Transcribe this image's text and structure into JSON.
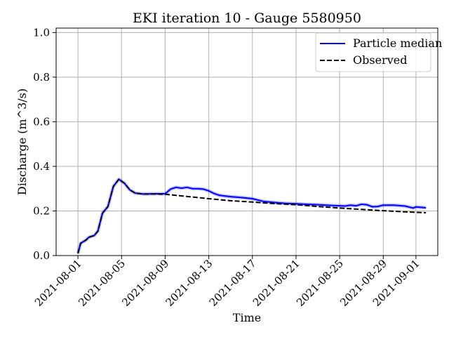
{
  "chart_data": {
    "type": "line",
    "title": "EKI iteration 10 - Gauge 5580950",
    "xlabel": "Time",
    "ylabel": "Discharge (m^3/s)",
    "xlim": [
      "2021-07-30",
      "2021-09-03"
    ],
    "ylim": [
      0,
      1.02
    ],
    "yticks": [
      0.0,
      0.2,
      0.4,
      0.6,
      0.8,
      1.0
    ],
    "yticklabels": [
      "0.0",
      "0.2",
      "0.4",
      "0.6",
      "0.8",
      "1.0"
    ],
    "xticks": [
      "2021-08-01",
      "2021-08-05",
      "2021-08-09",
      "2021-08-13",
      "2021-08-17",
      "2021-08-21",
      "2021-08-25",
      "2021-08-29",
      "2021-09-01"
    ],
    "grid": true,
    "legend_position": "top-right",
    "series": [
      {
        "name": "Particle median",
        "color": "#0000ff",
        "style": "solid",
        "points": [
          [
            "2021-08-01T00:00",
            0.01
          ],
          [
            "2021-08-01T06:00",
            0.055
          ],
          [
            "2021-08-01T18:00",
            0.07
          ],
          [
            "2021-08-02T00:00",
            0.082
          ],
          [
            "2021-08-02T12:00",
            0.09
          ],
          [
            "2021-08-02T20:00",
            0.11
          ],
          [
            "2021-08-03T06:00",
            0.19
          ],
          [
            "2021-08-03T18:00",
            0.22
          ],
          [
            "2021-08-04T06:00",
            0.31
          ],
          [
            "2021-08-04T18:00",
            0.342
          ],
          [
            "2021-08-05T06:00",
            0.325
          ],
          [
            "2021-08-05T18:00",
            0.295
          ],
          [
            "2021-08-06T06:00",
            0.28
          ],
          [
            "2021-08-07T00:00",
            0.276
          ],
          [
            "2021-08-08T00:00",
            0.277
          ],
          [
            "2021-08-09T00:00",
            0.277
          ],
          [
            "2021-08-09T12:00",
            0.298
          ],
          [
            "2021-08-10T00:00",
            0.306
          ],
          [
            "2021-08-10T12:00",
            0.302
          ],
          [
            "2021-08-11T00:00",
            0.306
          ],
          [
            "2021-08-11T12:00",
            0.3
          ],
          [
            "2021-08-12T00:00",
            0.3
          ],
          [
            "2021-08-12T12:00",
            0.298
          ],
          [
            "2021-08-13T00:00",
            0.29
          ],
          [
            "2021-08-13T12:00",
            0.278
          ],
          [
            "2021-08-14T00:00",
            0.27
          ],
          [
            "2021-08-15T00:00",
            0.264
          ],
          [
            "2021-08-16T00:00",
            0.26
          ],
          [
            "2021-08-17T00:00",
            0.255
          ],
          [
            "2021-08-18T00:00",
            0.243
          ],
          [
            "2021-08-19T00:00",
            0.238
          ],
          [
            "2021-08-20T00:00",
            0.234
          ],
          [
            "2021-08-21T00:00",
            0.232
          ],
          [
            "2021-08-22T00:00",
            0.23
          ],
          [
            "2021-08-23T00:00",
            0.228
          ],
          [
            "2021-08-24T00:00",
            0.225
          ],
          [
            "2021-08-25T00:00",
            0.223
          ],
          [
            "2021-08-25T12:00",
            0.222
          ],
          [
            "2021-08-26T00:00",
            0.226
          ],
          [
            "2021-08-26T12:00",
            0.223
          ],
          [
            "2021-08-27T00:00",
            0.23
          ],
          [
            "2021-08-27T12:00",
            0.228
          ],
          [
            "2021-08-28T00:00",
            0.219
          ],
          [
            "2021-08-28T12:00",
            0.22
          ],
          [
            "2021-08-29T00:00",
            0.226
          ],
          [
            "2021-08-30T00:00",
            0.226
          ],
          [
            "2021-08-31T00:00",
            0.222
          ],
          [
            "2021-08-31T18:00",
            0.213
          ],
          [
            "2021-09-01T00:00",
            0.218
          ],
          [
            "2021-09-01T12:00",
            0.216
          ],
          [
            "2021-09-01T22:00",
            0.214
          ]
        ]
      },
      {
        "name": "Observed",
        "color": "#000000",
        "style": "dashed",
        "points": [
          [
            "2021-08-01T00:00",
            0.01
          ],
          [
            "2021-08-01T06:00",
            0.055
          ],
          [
            "2021-08-01T18:00",
            0.07
          ],
          [
            "2021-08-02T00:00",
            0.082
          ],
          [
            "2021-08-02T12:00",
            0.09
          ],
          [
            "2021-08-02T20:00",
            0.11
          ],
          [
            "2021-08-03T06:00",
            0.19
          ],
          [
            "2021-08-03T18:00",
            0.22
          ],
          [
            "2021-08-04T06:00",
            0.31
          ],
          [
            "2021-08-04T18:00",
            0.342
          ],
          [
            "2021-08-05T06:00",
            0.325
          ],
          [
            "2021-08-05T18:00",
            0.295
          ],
          [
            "2021-08-06T06:00",
            0.28
          ],
          [
            "2021-08-07T00:00",
            0.276
          ],
          [
            "2021-08-08T00:00",
            0.276
          ],
          [
            "2021-08-09T00:00",
            0.275
          ],
          [
            "2021-08-11T00:00",
            0.265
          ],
          [
            "2021-08-13T00:00",
            0.255
          ],
          [
            "2021-08-15T00:00",
            0.246
          ],
          [
            "2021-08-17T00:00",
            0.24
          ],
          [
            "2021-08-19T00:00",
            0.233
          ],
          [
            "2021-08-21T00:00",
            0.228
          ],
          [
            "2021-08-23T00:00",
            0.22
          ],
          [
            "2021-08-25T00:00",
            0.213
          ],
          [
            "2021-08-27T00:00",
            0.207
          ],
          [
            "2021-08-29T00:00",
            0.201
          ],
          [
            "2021-08-31T00:00",
            0.196
          ],
          [
            "2021-09-01T22:00",
            0.192
          ]
        ]
      }
    ]
  }
}
